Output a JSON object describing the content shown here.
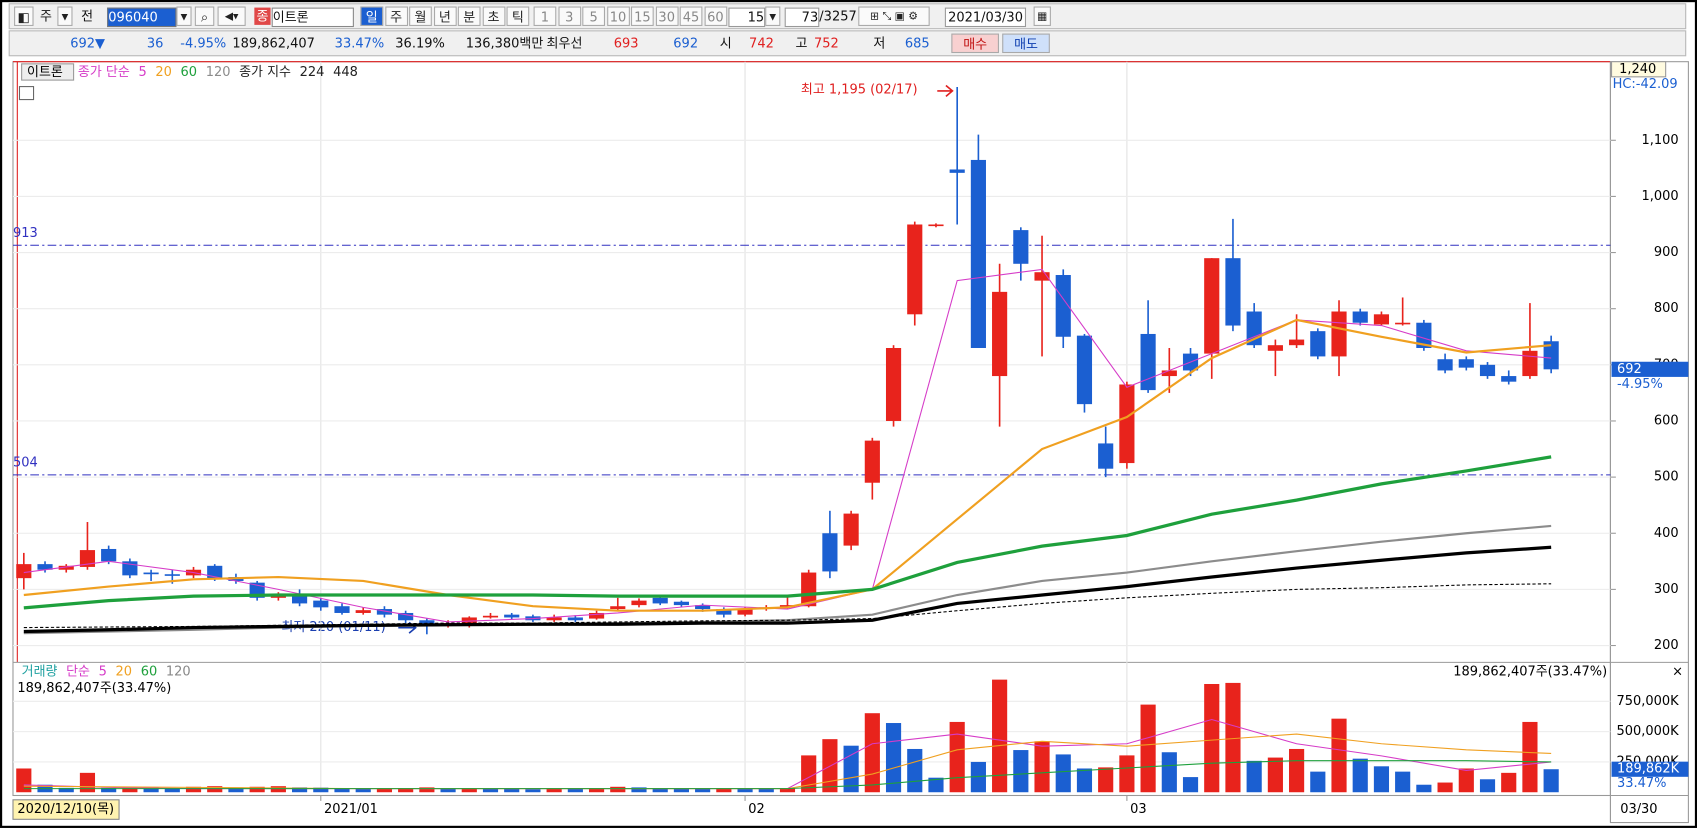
{
  "toolbar": {
    "tab": "주",
    "prev": "전",
    "code": "096040",
    "market": "종",
    "name": "이트론",
    "periods": [
      "일",
      "주",
      "월",
      "년",
      "분",
      "초",
      "틱"
    ],
    "minutes": [
      "1",
      "3",
      "5",
      "10",
      "15",
      "30",
      "45",
      "60"
    ],
    "interval": "15",
    "count": "73",
    "total": "/3257",
    "date": "2021/03/30"
  },
  "quote": {
    "price": "692▼",
    "change": "36",
    "rate": "-4.95%",
    "volume": "189,862,407",
    "turnover": "33.47%",
    "ratio": "36.19%",
    "amount": "136,380백만",
    "best_label": "최우선",
    "ask": "693",
    "bid": "692",
    "open_label": "시",
    "open": "742",
    "high_label": "고",
    "high": "752",
    "low_label": "저",
    "low": "685",
    "buy": "매수",
    "sell": "매도"
  },
  "chart": {
    "type": "candlestick",
    "name": "이트론",
    "price_legend": {
      "simple": "종가 단순",
      "exp": "종가 지수"
    },
    "ylim": [
      170,
      1240
    ],
    "top_label": "1,240",
    "hc_label": "HC:-42.09",
    "yticks": [
      {
        "value": 1100,
        "label": "1,100"
      },
      {
        "value": 1000,
        "label": "1,000"
      },
      900,
      800,
      700,
      600,
      500,
      400,
      300,
      200
    ],
    "hlines": [
      913,
      504
    ],
    "high_note": "최고 1,195 (02/17)",
    "low_note": "최저 220 (01/11)",
    "last": {
      "value": 692,
      "rate": "-4.95%"
    },
    "xticks": [
      {
        "value": 14,
        "label": "2021/01"
      },
      {
        "value": 34,
        "label": "02"
      },
      {
        "value": 52,
        "label": "03"
      }
    ],
    "first_date": "2020/12/10(목)",
    "last_date": "03/30",
    "up_color": "#e8231c",
    "down_color": "#1b5fd1",
    "open": [
      320,
      345,
      335,
      340,
      372,
      350,
      330,
      327,
      325,
      342,
      322,
      312,
      285,
      290,
      280,
      270,
      258,
      265,
      258,
      245,
      235,
      235,
      250,
      255,
      252,
      245,
      250,
      248,
      265,
      272,
      285,
      278,
      272,
      265,
      255,
      265,
      268,
      270,
      400,
      378,
      490,
      600,
      790,
      948,
      1048,
      1065,
      680,
      940,
      850,
      860,
      752,
      560,
      525,
      755,
      680,
      720,
      720,
      890,
      795,
      725,
      735,
      760,
      715,
      795,
      772,
      775,
      775,
      710,
      710,
      700,
      680,
      680,
      742
    ],
    "high": [
      365,
      350,
      345,
      420,
      378,
      355,
      335,
      335,
      340,
      345,
      328,
      315,
      295,
      300,
      285,
      275,
      268,
      270,
      262,
      248,
      245,
      252,
      258,
      258,
      255,
      255,
      254,
      262,
      285,
      284,
      288,
      280,
      275,
      268,
      268,
      272,
      290,
      335,
      440,
      440,
      570,
      735,
      955,
      952,
      1195,
      1110,
      880,
      945,
      930,
      870,
      755,
      590,
      670,
      815,
      730,
      730,
      890,
      960,
      810,
      745,
      790,
      765,
      815,
      800,
      795,
      820,
      780,
      720,
      715,
      705,
      690,
      810,
      752
    ],
    "low": [
      300,
      330,
      330,
      335,
      345,
      320,
      315,
      310,
      320,
      315,
      310,
      280,
      280,
      270,
      262,
      255,
      255,
      250,
      240,
      220,
      232,
      232,
      248,
      246,
      242,
      242,
      242,
      246,
      262,
      268,
      272,
      268,
      260,
      250,
      252,
      262,
      265,
      268,
      320,
      370,
      460,
      590,
      770,
      945,
      950,
      730,
      590,
      850,
      715,
      730,
      615,
      500,
      515,
      650,
      650,
      680,
      675,
      760,
      730,
      680,
      730,
      710,
      680,
      770,
      770,
      770,
      725,
      685,
      690,
      675,
      665,
      675,
      685
    ],
    "close": [
      345,
      335,
      342,
      370,
      350,
      325,
      327,
      325,
      335,
      320,
      315,
      285,
      290,
      275,
      268,
      258,
      263,
      255,
      245,
      235,
      240,
      250,
      253,
      250,
      245,
      250,
      245,
      258,
      270,
      280,
      275,
      272,
      265,
      255,
      265,
      268,
      272,
      330,
      332,
      435,
      565,
      730,
      950,
      950,
      1042,
      730,
      830,
      880,
      865,
      750,
      630,
      515,
      665,
      655,
      690,
      690,
      890,
      770,
      735,
      735,
      745,
      715,
      795,
      775,
      790,
      775,
      730,
      690,
      695,
      680,
      670,
      725,
      692
    ],
    "ma": [
      {
        "name": "5",
        "group": "simple",
        "color": "#d63cc8",
        "width": 1,
        "x": [
          0,
          4,
          8,
          12,
          16,
          20,
          24,
          28,
          32,
          36,
          40,
          44,
          48,
          52,
          56,
          60,
          64,
          68,
          72
        ],
        "values": [
          330,
          350,
          330,
          300,
          268,
          242,
          248,
          258,
          272,
          265,
          300,
          850,
          870,
          660,
          720,
          780,
          770,
          725,
          712
        ]
      },
      {
        "name": "20",
        "group": "simple",
        "color": "#f0a020",
        "width": 2,
        "x": [
          0,
          4,
          8,
          12,
          16,
          20,
          24,
          28,
          32,
          36,
          40,
          44,
          48,
          52,
          56,
          60,
          64,
          68,
          72
        ],
        "values": [
          290,
          305,
          318,
          322,
          315,
          290,
          270,
          262,
          262,
          268,
          300,
          425,
          550,
          607,
          712,
          780,
          750,
          722,
          735
        ]
      },
      {
        "name": "60",
        "group": "simple",
        "color": "#1ea03c",
        "width": 3,
        "x": [
          0,
          4,
          8,
          12,
          16,
          20,
          24,
          28,
          32,
          36,
          40,
          44,
          48,
          52,
          56,
          60,
          64,
          68,
          72
        ],
        "values": [
          267,
          280,
          288,
          290,
          290,
          290,
          290,
          288,
          288,
          288,
          300,
          348,
          377,
          396,
          434,
          459,
          488,
          511,
          536
        ]
      },
      {
        "name": "120",
        "group": "simple",
        "color": "#8c8c8c",
        "width": 2,
        "x": [
          0,
          4,
          8,
          12,
          16,
          20,
          24,
          28,
          32,
          36,
          40,
          44,
          48,
          52,
          56,
          60,
          64,
          68,
          72
        ],
        "values": [
          222,
          225,
          228,
          232,
          235,
          237,
          238,
          240,
          242,
          245,
          255,
          290,
          315,
          330,
          350,
          368,
          385,
          400,
          413
        ]
      },
      {
        "name": "224",
        "group": "exp",
        "color": "#000000",
        "width": 3,
        "x": [
          0,
          4,
          8,
          12,
          16,
          20,
          24,
          28,
          32,
          36,
          40,
          44,
          48,
          52,
          56,
          60,
          64,
          68,
          72
        ],
        "values": [
          225,
          228,
          232,
          234,
          236,
          237,
          238,
          238,
          240,
          240,
          245,
          275,
          290,
          305,
          322,
          338,
          352,
          365,
          375
        ]
      },
      {
        "name": "448",
        "group": "exp",
        "color": "#000000",
        "width": 1,
        "dashed": true,
        "x": [
          0,
          4,
          8,
          12,
          16,
          20,
          24,
          28,
          32,
          36,
          40,
          44,
          48,
          52,
          56,
          60,
          64,
          68,
          72
        ],
        "values": [
          232,
          233,
          234,
          236,
          238,
          240,
          240,
          242,
          244,
          245,
          248,
          262,
          275,
          285,
          293,
          300,
          303,
          308,
          310
        ]
      }
    ]
  },
  "volume": {
    "title": "거래량",
    "method": "단순",
    "extra": "120",
    "info": "189,862,407주(33.47%)",
    "info_right": "189,862,407주(33.47%)",
    "ylim": [
      0,
      1000000
    ],
    "yticks": [
      {
        "value": 750000,
        "label": "750,000K"
      },
      {
        "value": 500000,
        "label": "500,000K"
      },
      {
        "value": 250000,
        "label": "250,000K"
      }
    ],
    "last": {
      "value": 189862,
      "label": "189,862K",
      "rate": "33.47%"
    },
    "values": [
      196000,
      62000,
      36000,
      160000,
      36000,
      45000,
      40000,
      35000,
      45000,
      50000,
      40000,
      45000,
      50000,
      40000,
      38000,
      35000,
      30000,
      32000,
      35000,
      40000,
      30000,
      35000,
      30000,
      28000,
      25000,
      30000,
      28000,
      35000,
      45000,
      40000,
      35000,
      30000,
      28000,
      32000,
      30000,
      28000,
      35000,
      304000,
      438000,
      384000,
      652000,
      571000,
      357000,
      120000,
      580000,
      250000,
      929000,
      348000,
      420000,
      312000,
      196000,
      205000,
      304000,
      723000,
      330000,
      125000,
      893000,
      902000,
      259000,
      286000,
      357000,
      170000,
      607000,
      277000,
      214000,
      170000,
      62000,
      80000,
      196000,
      107000,
      160000,
      580000,
      189862
    ],
    "ma": [
      {
        "name": "5",
        "color": "#d63cc8",
        "x": [
          0,
          4,
          8,
          12,
          16,
          20,
          24,
          28,
          32,
          36,
          40,
          44,
          48,
          52,
          56,
          60,
          64,
          68,
          72
        ],
        "values": [
          60000,
          40000,
          30000,
          30000,
          30000,
          30000,
          30000,
          30000,
          30000,
          30000,
          400000,
          480000,
          380000,
          400000,
          600000,
          400000,
          300000,
          180000,
          250000
        ]
      },
      {
        "name": "20",
        "color": "#f0a020",
        "x": [
          0,
          4,
          8,
          12,
          16,
          20,
          24,
          28,
          32,
          36,
          40,
          44,
          48,
          52,
          56,
          60,
          64,
          68,
          72
        ],
        "values": [
          50000,
          45000,
          40000,
          35000,
          30000,
          30000,
          30000,
          30000,
          30000,
          30000,
          150000,
          350000,
          420000,
          380000,
          430000,
          480000,
          400000,
          350000,
          320000
        ]
      },
      {
        "name": "60",
        "color": "#1ea03c",
        "x": [
          0,
          4,
          8,
          12,
          16,
          20,
          24,
          28,
          32,
          36,
          40,
          44,
          48,
          52,
          56,
          60,
          64,
          68,
          72
        ],
        "values": [
          30000,
          30000,
          30000,
          30000,
          30000,
          30000,
          30000,
          30000,
          30000,
          30000,
          60000,
          120000,
          160000,
          200000,
          240000,
          260000,
          260000,
          260000,
          250000
        ]
      }
    ]
  }
}
